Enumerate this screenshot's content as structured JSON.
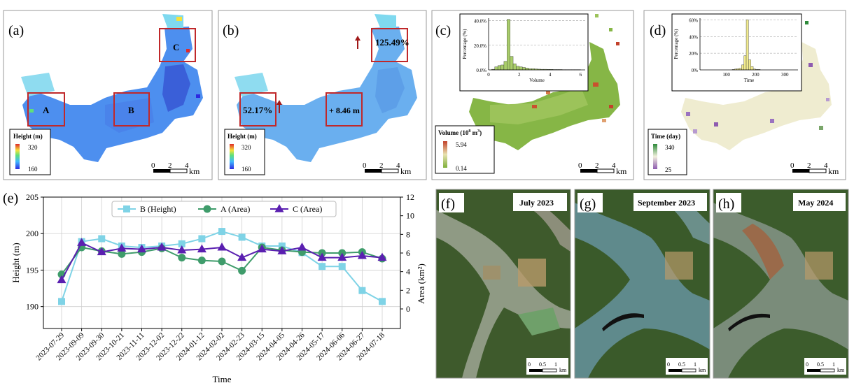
{
  "panels": {
    "a": {
      "tag": "(a)",
      "legend_title": "Height (m)",
      "legend_max": "320",
      "legend_min": "160",
      "boxes": [
        "A",
        "B",
        "C"
      ],
      "scale_ticks": [
        "0",
        "2",
        "4"
      ],
      "scale_unit": "km"
    },
    "b": {
      "tag": "(b)",
      "legend_title": "Height (m)",
      "legend_max": "320",
      "legend_min": "160",
      "label_a": "52.17%",
      "label_b": "+ 8.46 m",
      "label_c": "125.49%",
      "scale_ticks": [
        "0",
        "2",
        "4"
      ],
      "scale_unit": "km"
    },
    "c": {
      "tag": "(c)",
      "legend_title": "Volume (10",
      "legend_sup1": "8",
      "legend_mid": " m",
      "legend_sup2": "3",
      "legend_end": ")",
      "legend_max": "5.94",
      "legend_min": "0.14",
      "scale_ticks": [
        "0",
        "2",
        "4"
      ],
      "scale_unit": "km"
    },
    "d": {
      "tag": "(d)",
      "legend_title": "Time (day)",
      "legend_max": "340",
      "legend_min": "25",
      "scale_ticks": [
        "0",
        "2",
        "4"
      ],
      "scale_unit": "km"
    },
    "f": {
      "tag": "(f)",
      "date": "July 2023",
      "scale_ticks": [
        "0",
        "0.5",
        "1"
      ],
      "scale_unit": "km"
    },
    "g": {
      "tag": "(g)",
      "date": "September 2023",
      "scale_ticks": [
        "0",
        "0.5",
        "1"
      ],
      "scale_unit": "km"
    },
    "h": {
      "tag": "(h)",
      "date": "May 2024",
      "scale_ticks": [
        "0",
        "0.5",
        "1"
      ],
      "scale_unit": "km"
    }
  },
  "colors": {
    "height_series": "#7fd3e6",
    "area_a": "#3f9c6b",
    "area_c": "#5a1fb0",
    "water_blue": "#3f7bd9",
    "veg_green": "#7fb03b"
  },
  "chart_data": [
    {
      "panel": "(e)",
      "type": "line",
      "xlabel": "Time",
      "ylabel": "Height (m)",
      "y2label": "Area (km²)",
      "ylim": [
        187,
        205
      ],
      "yticks": [
        190,
        195,
        200,
        205
      ],
      "y2lim": [
        -2.1,
        12
      ],
      "y2ticks": [
        0,
        2,
        4,
        6,
        8,
        10,
        12
      ],
      "grid": true,
      "legend_position": "top-center",
      "x": [
        "2023-07-29",
        "2023-09-09",
        "2023-09-30",
        "2023-10-21",
        "2023-11-11",
        "2023-12-02",
        "2023-12-22",
        "2024-01-12",
        "2024-02-02",
        "2024-02-23",
        "2024-03-15",
        "2024-04-05",
        "2024-04-26",
        "2024-05-17",
        "2024-06-06",
        "2024-06-27",
        "2024-07-18"
      ],
      "series": [
        {
          "name": "B (Height)",
          "axis": "left",
          "marker": "square",
          "values": [
            190.7,
            198.9,
            199.3,
            198.3,
            198.1,
            198.3,
            198.6,
            199.3,
            200.3,
            199.5,
            198.3,
            198.3,
            197.4,
            195.5,
            195.5,
            192.2,
            190.7
          ]
        },
        {
          "name": "A (Area)",
          "axis": "right",
          "marker": "circle",
          "values": [
            3.7,
            6.6,
            6.2,
            5.9,
            6.1,
            6.5,
            5.5,
            5.2,
            5.1,
            4.1,
            6.6,
            6.3,
            6.1,
            6.0,
            6.0,
            6.1,
            5.4
          ]
        },
        {
          "name": "C (Area)",
          "axis": "right",
          "marker": "triangle",
          "values": [
            3.1,
            7.1,
            6.1,
            6.5,
            6.4,
            6.6,
            6.3,
            6.4,
            6.6,
            5.5,
            6.4,
            6.2,
            6.6,
            5.5,
            5.5,
            5.7,
            5.5
          ]
        }
      ]
    },
    {
      "panel": "(c) inset",
      "type": "bar",
      "xlabel": "Volume",
      "ylabel": "Percentage (%)",
      "xlim": [
        0,
        6.3
      ],
      "xticks": [
        0,
        2,
        4,
        6
      ],
      "ylim": [
        0,
        42
      ],
      "yticks": [
        0,
        20,
        40
      ],
      "ytick_labels": [
        "0.0%",
        "20.0%",
        "40.0%"
      ],
      "bin_width": 0.2,
      "x": [
        0.3,
        0.5,
        0.7,
        0.9,
        1.1,
        1.3,
        1.5,
        1.7,
        1.9,
        2.1,
        2.3,
        2.5,
        2.7,
        2.9,
        3.1,
        3.3,
        3.5,
        3.7,
        3.9,
        4.1,
        4.3,
        4.5,
        4.7,
        4.9,
        5.1,
        5.3,
        5.5,
        5.7,
        5.9
      ],
      "values": [
        0.5,
        2.5,
        3.5,
        4.0,
        7.0,
        41.0,
        11.0,
        5.0,
        3.0,
        2.5,
        2.0,
        1.5,
        1.0,
        1.0,
        0.8,
        0.6,
        0.5,
        0.5,
        0.4,
        0.4,
        0.3,
        0.3,
        0.3,
        0.2,
        0.2,
        0.2,
        0.2,
        0.2,
        0.2
      ]
    },
    {
      "panel": "(d) inset",
      "type": "bar",
      "xlabel": "Time",
      "ylabel": "Percentage (%)",
      "xlim": [
        10,
        345
      ],
      "xticks": [
        100,
        200,
        300
      ],
      "ylim": [
        0,
        62
      ],
      "yticks": [
        0,
        20,
        40,
        60
      ],
      "ytick_labels": [
        "0%",
        "20%",
        "40%",
        "60%"
      ],
      "bin_width": 8,
      "x": [
        124,
        132,
        140,
        148,
        156,
        164,
        172,
        180,
        188,
        196,
        204,
        212
      ],
      "values": [
        0.5,
        1.0,
        1.5,
        2.0,
        6.0,
        17.0,
        60.0,
        12.0,
        4.0,
        1.0,
        0.5,
        0.5
      ]
    }
  ]
}
